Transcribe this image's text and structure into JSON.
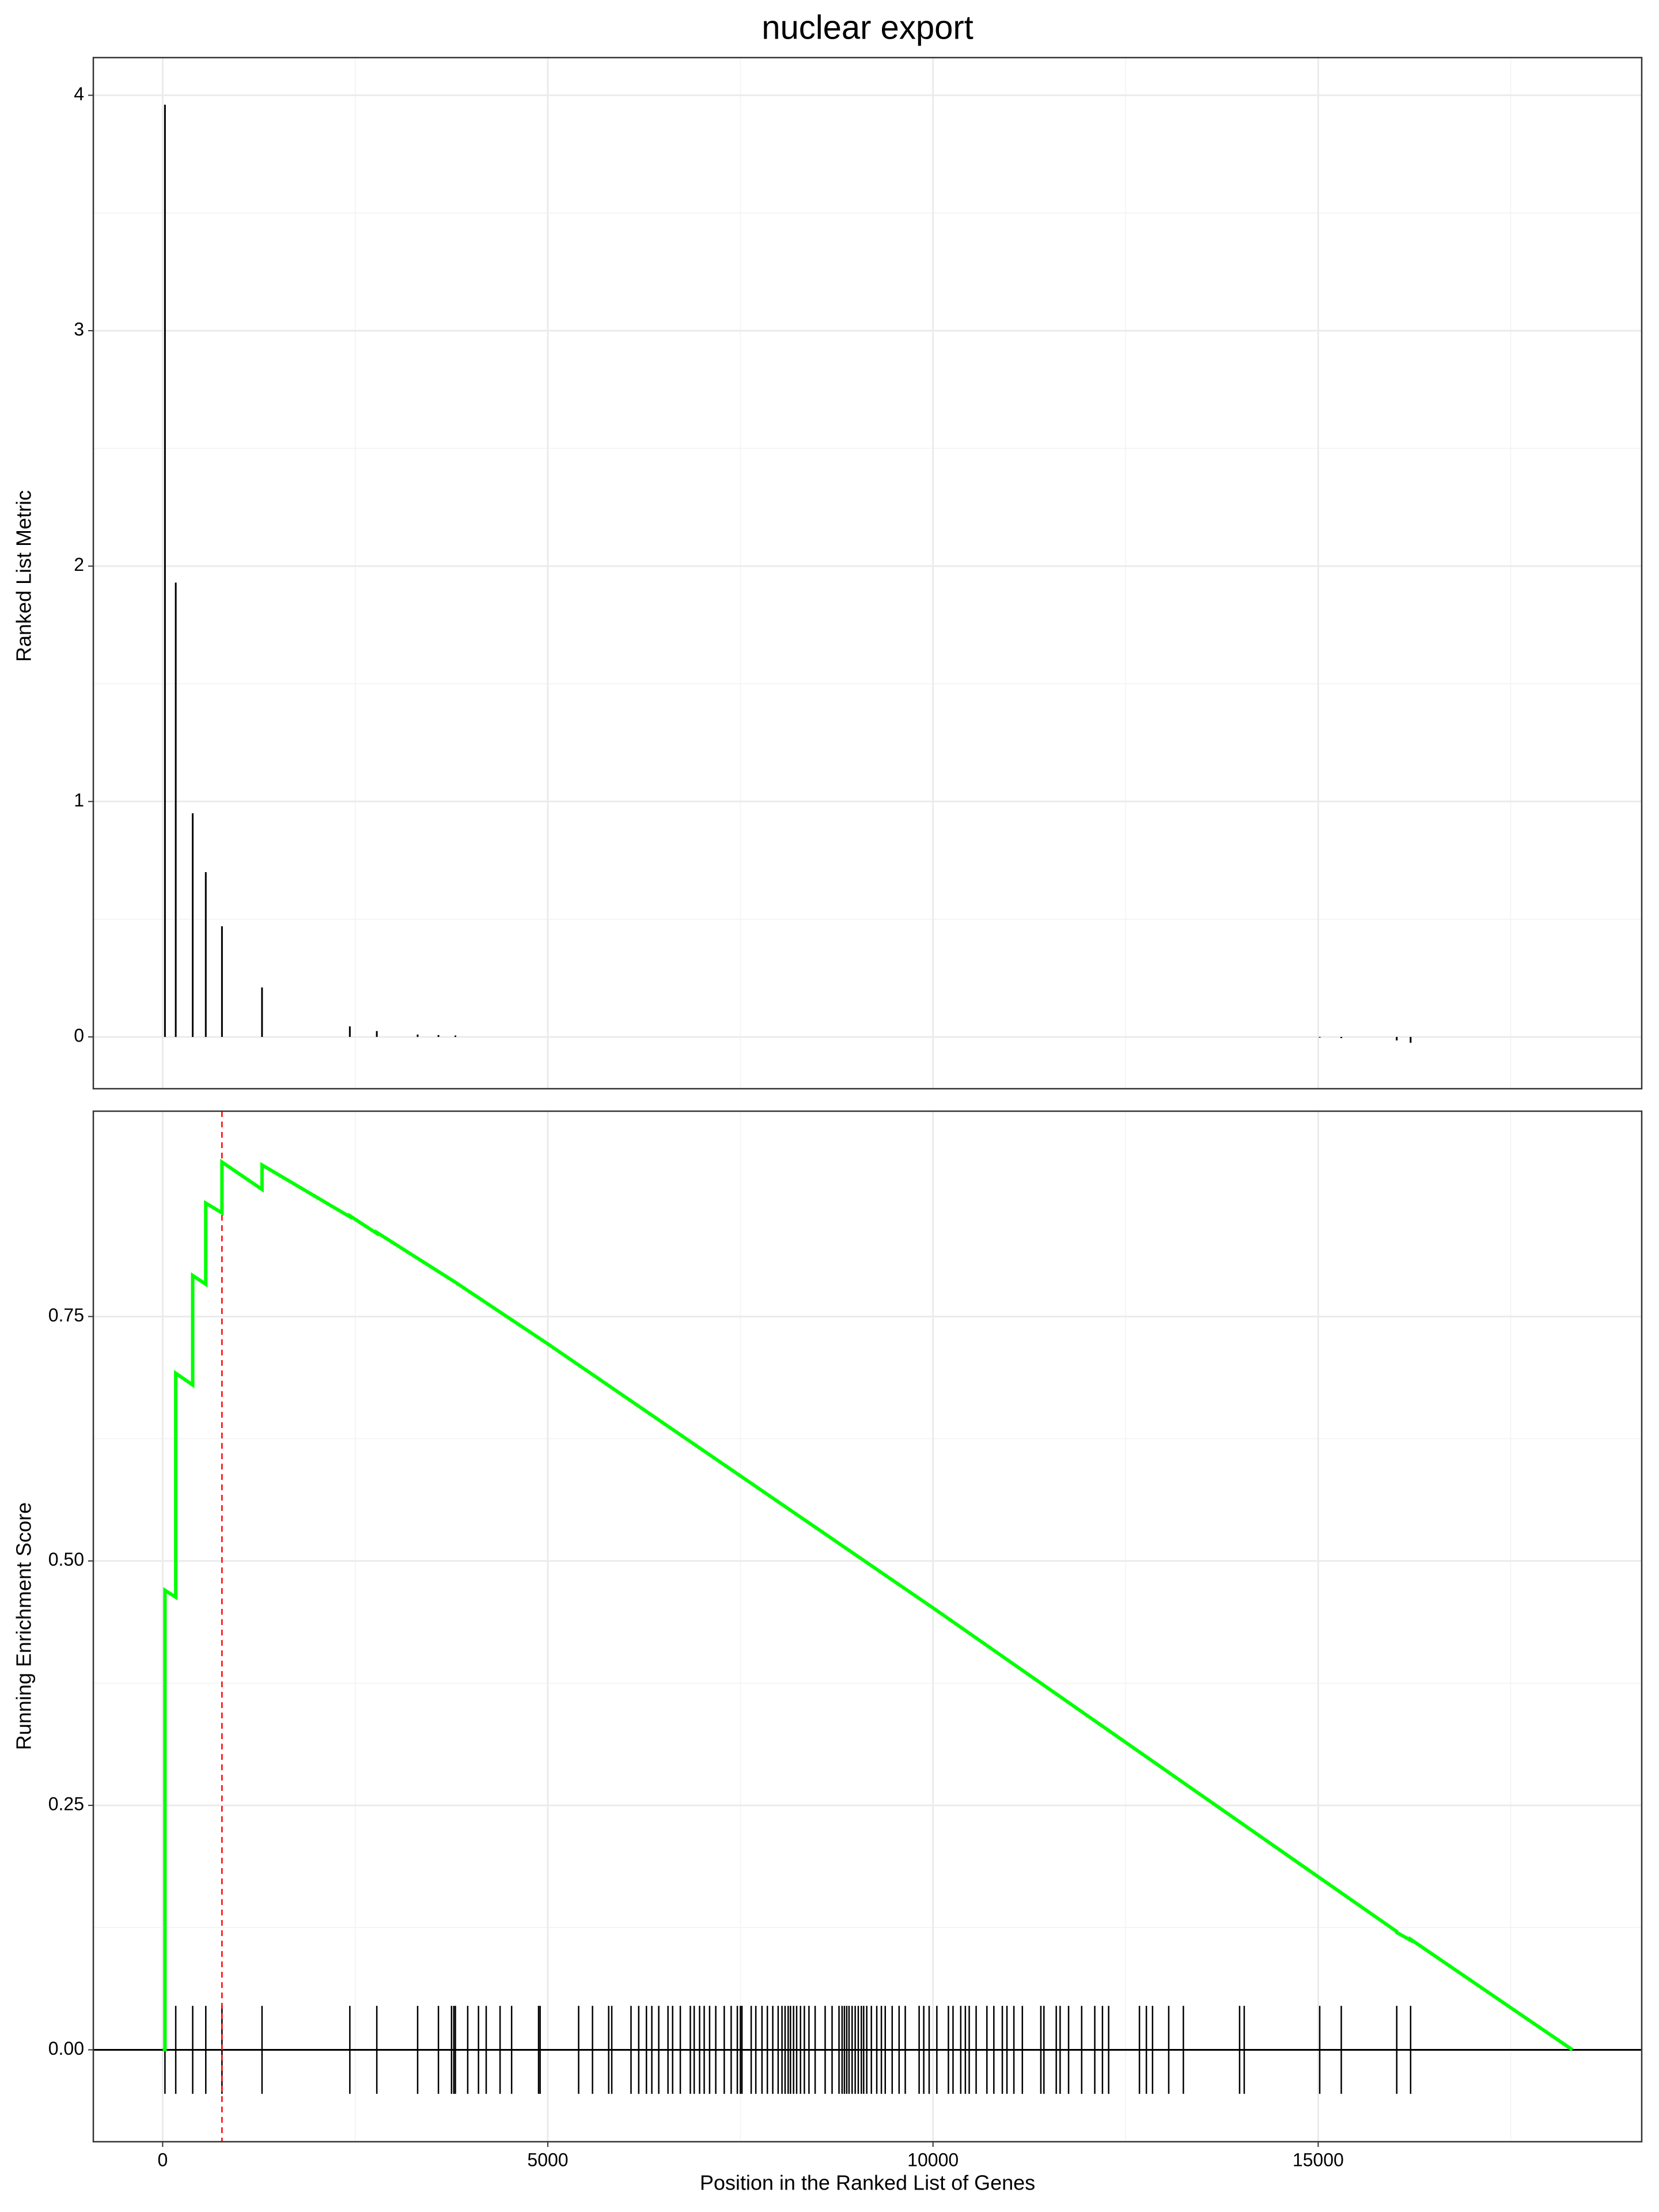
{
  "chart_data": [
    {
      "type": "bar",
      "title": "nuclear export",
      "y_label": "Ranked List Metric",
      "x": [
        30,
        170,
        390,
        560,
        770,
        1290,
        2430,
        2780,
        3310,
        3580,
        3800,
        15020,
        15300,
        16020,
        16200
      ],
      "values": [
        3.96,
        1.93,
        0.95,
        0.7,
        0.47,
        0.21,
        0.045,
        0.025,
        0.01,
        0.008,
        0.006,
        -0.003,
        -0.005,
        -0.015,
        -0.025
      ],
      "color": "#000000",
      "xlim": [
        -900,
        19200
      ],
      "xticks": [
        0,
        5000,
        10000,
        15000
      ],
      "ylim": [
        -0.22,
        4.16
      ],
      "yticks": [
        0,
        1,
        2,
        3,
        4
      ],
      "grid": true
    },
    {
      "type": "line",
      "x_label": "Position in the Ranked List of Genes",
      "y_label": "Running Enrichment Score",
      "x": [
        0,
        30,
        30,
        170,
        170,
        390,
        390,
        560,
        560,
        770,
        770,
        1290,
        1290,
        2430,
        2430,
        2780,
        2780,
        3800,
        5000,
        10000,
        15000,
        16020,
        16020,
        16200,
        16200,
        18300
      ],
      "values": [
        0,
        0,
        0.47,
        0.463,
        0.692,
        0.68,
        0.792,
        0.783,
        0.866,
        0.856,
        0.908,
        0.88,
        0.905,
        0.852,
        0.853,
        0.835,
        0.836,
        0.785,
        0.722,
        0.452,
        0.177,
        0.121,
        0.12,
        0.112,
        0.113,
        0
      ],
      "color": "#00ff00",
      "hits": [
        30,
        170,
        390,
        560,
        770,
        1290,
        2430,
        2780,
        3310,
        3580,
        3750,
        3780,
        3800,
        3960,
        4100,
        4200,
        4380,
        4530,
        4880,
        4900,
        5400,
        5580,
        5790,
        5830,
        6080,
        6180,
        6280,
        6350,
        6440,
        6560,
        6620,
        6720,
        6850,
        6900,
        6970,
        7030,
        7100,
        7180,
        7290,
        7380,
        7460,
        7500,
        7520,
        7640,
        7700,
        7780,
        7850,
        7920,
        7990,
        8040,
        8080,
        8120,
        8150,
        8190,
        8230,
        8280,
        8330,
        8390,
        8470,
        8600,
        8690,
        8780,
        8820,
        8850,
        8880,
        8910,
        8950,
        8990,
        9030,
        9070,
        9100,
        9140,
        9200,
        9270,
        9330,
        9380,
        9470,
        9560,
        9640,
        9820,
        9880,
        9950,
        10050,
        10200,
        10260,
        10360,
        10420,
        10470,
        10560,
        10700,
        10790,
        10900,
        10960,
        11050,
        11160,
        11400,
        11440,
        11600,
        11650,
        11760,
        11930,
        12100,
        12200,
        12280,
        12680,
        12770,
        12850,
        13060,
        13250,
        13980,
        14040,
        15020,
        15300,
        16020,
        16200
      ],
      "hit_color": "#000000",
      "peak_x": 770,
      "peak_color": "#ff0000",
      "xlim": [
        -900,
        19200
      ],
      "xticks": [
        0,
        5000,
        10000,
        15000
      ],
      "ylim": [
        -0.094,
        0.96
      ],
      "yticks": [
        {
          "value": 0,
          "label": "0.00"
        },
        0.25,
        {
          "value": 0.5,
          "label": "0.50"
        },
        0.75
      ],
      "grid": true
    }
  ]
}
